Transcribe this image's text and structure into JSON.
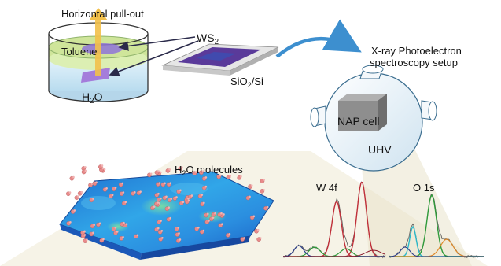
{
  "labels": {
    "pull_out": "Horizontal pull-out",
    "toluene": "Toluene",
    "ws2": {
      "main": "WS",
      "sub": "2"
    },
    "water": {
      "main": "H",
      "sub": "2",
      "tail": "O"
    },
    "substrate": {
      "main": "SiO",
      "sub": "2",
      "tail": "/Si"
    },
    "xps_line1": "X-ray Photoelectron",
    "xps_line2": "spectroscopy setup",
    "nap_cell": "NAP cell",
    "uhv": "UHV",
    "molecules": {
      "main": "H",
      "sub": "2",
      "tail": "O molecules"
    },
    "w4f": "W 4f",
    "o1s": "O 1s"
  },
  "colors": {
    "toluene_layer": "#cfe59a",
    "water": "#cfe8f5",
    "ws2_flake": "#a070d8",
    "substrate_film": "#5a3a9a",
    "arrow_blue": "#3d8fcf",
    "pull_arrow": "#f2c04a",
    "chamber": "#eef6fb",
    "nap_box": "#8e8e8e",
    "map_surface": "#2e8ee0",
    "molecule": "#e88a8a",
    "fit_red": "#c0303a",
    "fit_green": "#2f9a3a",
    "fit_cyan": "#2bb8c8",
    "fit_navy": "#2b3d8a",
    "fit_orange": "#e08a2a",
    "data_trace": "#555555"
  },
  "icons": [
    "pull-out-arrow-icon",
    "transfer-arrow-icon",
    "water-molecule-icon"
  ]
}
